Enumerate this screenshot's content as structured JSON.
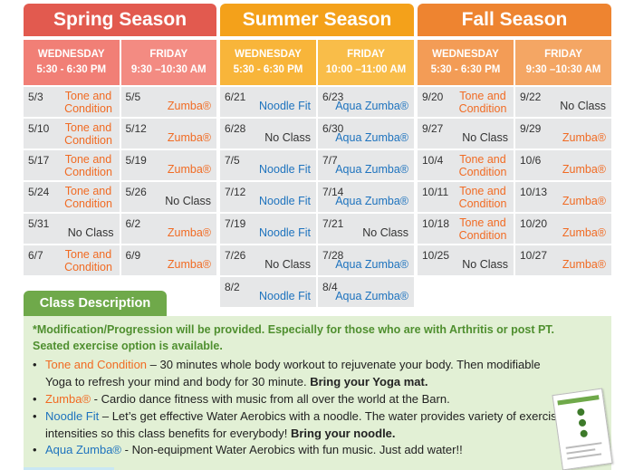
{
  "seasons": [
    {
      "id": "spring",
      "title": "Spring Season",
      "wed": {
        "day": "WEDNESDAY",
        "time": "5:30 - 6:30 PM"
      },
      "fri": {
        "day": "FRIDAY",
        "time": "9:30 –10:30 AM"
      },
      "rows": [
        {
          "wd": "5/3",
          "wc": "Tone and Condition",
          "wt": "tone",
          "fd": "5/5",
          "fc": "Zumba®",
          "ft": "zumba"
        },
        {
          "wd": "5/10",
          "wc": "Tone and Condition",
          "wt": "tone",
          "fd": "5/12",
          "fc": "Zumba®",
          "ft": "zumba"
        },
        {
          "wd": "5/17",
          "wc": "Tone and Condition",
          "wt": "tone",
          "fd": "5/19",
          "fc": "Zumba®",
          "ft": "zumba"
        },
        {
          "wd": "5/24",
          "wc": "Tone and Condition",
          "wt": "tone",
          "fd": "5/26",
          "fc": "No Class",
          "ft": "noclass"
        },
        {
          "wd": "5/31",
          "wc": "No Class",
          "wt": "noclass",
          "fd": "6/2",
          "fc": "Zumba®",
          "ft": "zumba"
        },
        {
          "wd": "6/7",
          "wc": "Tone and Condition",
          "wt": "tone",
          "fd": "6/9",
          "fc": "Zumba®",
          "ft": "zumba"
        }
      ]
    },
    {
      "id": "summer",
      "title": "Summer Season",
      "wed": {
        "day": "WEDNESDAY",
        "time": "5:30 - 6:30 PM"
      },
      "fri": {
        "day": "FRIDAY",
        "time": "10:00 –11:00 AM"
      },
      "rows": [
        {
          "wd": "6/21",
          "wc": "Noodle Fit",
          "wt": "noodle",
          "fd": "6/23",
          "fc": "Aqua Zumba®",
          "ft": "aqua"
        },
        {
          "wd": "6/28",
          "wc": "No Class",
          "wt": "noclass",
          "fd": "6/30",
          "fc": "Aqua Zumba®",
          "ft": "aqua"
        },
        {
          "wd": "7/5",
          "wc": "Noodle Fit",
          "wt": "noodle",
          "fd": "7/7",
          "fc": "Aqua Zumba®",
          "ft": "aqua"
        },
        {
          "wd": "7/12",
          "wc": "Noodle Fit",
          "wt": "noodle",
          "fd": "7/14",
          "fc": "Aqua Zumba®",
          "ft": "aqua"
        },
        {
          "wd": "7/19",
          "wc": "Noodle Fit",
          "wt": "noodle",
          "fd": "7/21",
          "fc": "No Class",
          "ft": "noclass"
        },
        {
          "wd": "7/26",
          "wc": "No Class",
          "wt": "noclass",
          "fd": "7/28",
          "fc": "Aqua Zumba®",
          "ft": "aqua"
        },
        {
          "wd": "8/2",
          "wc": "Noodle Fit",
          "wt": "noodle",
          "fd": "8/4",
          "fc": "Aqua Zumba®",
          "ft": "aqua"
        }
      ]
    },
    {
      "id": "fall",
      "title": "Fall Season",
      "wed": {
        "day": "WEDNESDAY",
        "time": "5:30 - 6:30 PM"
      },
      "fri": {
        "day": "FRIDAY",
        "time": "9:30 –10:30 AM"
      },
      "rows": [
        {
          "wd": "9/20",
          "wc": "Tone and Condition",
          "wt": "tone",
          "fd": "9/22",
          "fc": "No Class",
          "ft": "noclass"
        },
        {
          "wd": "9/27",
          "wc": "No Class",
          "wt": "noclass",
          "fd": "9/29",
          "fc": "Zumba®",
          "ft": "zumba"
        },
        {
          "wd": "10/4",
          "wc": "Tone and Condition",
          "wt": "tone",
          "fd": "10/6",
          "fc": "Zumba®",
          "ft": "zumba"
        },
        {
          "wd": "10/11",
          "wc": "Tone and Condition",
          "wt": "tone",
          "fd": "10/13",
          "fc": "Zumba®",
          "ft": "zumba"
        },
        {
          "wd": "10/18",
          "wc": "Tone and Condition",
          "wt": "tone",
          "fd": "10/20",
          "fc": "Zumba®",
          "ft": "zumba"
        },
        {
          "wd": "10/25",
          "wc": "No Class",
          "wt": "noclass",
          "fd": "10/27",
          "fc": "Zumba®",
          "ft": "zumba"
        }
      ]
    }
  ],
  "description": {
    "tab_label": "Class Description",
    "note_line1": "*Modification/Progression will be provided. Especially for those who are with Arthritis or post PT.",
    "note_line2": "Seated exercise option is available.",
    "items": {
      "tone": {
        "name": "Tone and Condition",
        "text": " – 30 minutes whole body workout to rejuvenate your body. Then modifiable Yoga to refresh your mind and body for 30 minute. ",
        "bold": "Bring your Yoga mat."
      },
      "zumba": {
        "name": "Zumba®",
        "text": " - Cardio dance fitness with music from all over the world at the Barn."
      },
      "noodle": {
        "name": "Noodle Fit",
        "text": " – Let’s get effective Water Aerobics with a noodle. The water provides variety of exercise intensities so this class benefits for everybody! ",
        "bold": "Bring your noodle."
      },
      "aqua": {
        "name": "Aqua Zumba®",
        "text": " - Non-equipment Water Aerobics with fun music. Just add water!!"
      }
    }
  },
  "colors": {
    "spring": "#e25a4f",
    "summer": "#f4a11a",
    "fall": "#ee8430",
    "class_orange": "#f16b23",
    "class_blue": "#1e73be",
    "description_green": "#6fa94a"
  }
}
